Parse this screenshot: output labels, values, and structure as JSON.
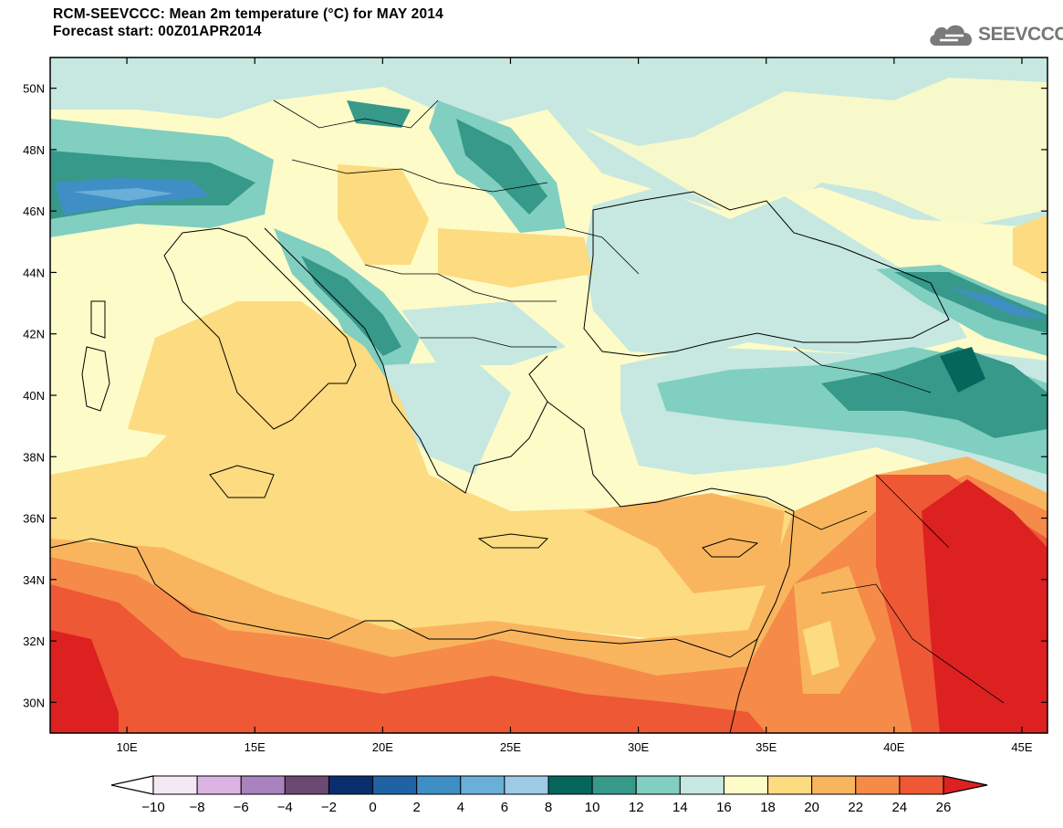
{
  "header": {
    "title_line1": "RCM-SEEVCCC: Mean 2m temperature (°C) for MAY 2014",
    "title_line2": "Forecast start: 00Z01APR2014"
  },
  "logo": {
    "text": "SEEVCCC",
    "icon": "cloud-icon",
    "color": "#777777"
  },
  "map": {
    "variable": "Mean 2m temperature",
    "unit": "°C",
    "lon_range": [
      7,
      46
    ],
    "lat_range": [
      29,
      51
    ],
    "lat_labels": [
      "30N",
      "32N",
      "34N",
      "36N",
      "38N",
      "40N",
      "42N",
      "44N",
      "46N",
      "48N",
      "50N"
    ],
    "lat_values": [
      30,
      32,
      34,
      36,
      38,
      40,
      42,
      44,
      46,
      48,
      50
    ],
    "lon_labels": [
      "10E",
      "15E",
      "20E",
      "25E",
      "30E",
      "35E",
      "40E",
      "45E"
    ],
    "lon_values": [
      10,
      15,
      20,
      25,
      30,
      35,
      40,
      45
    ]
  },
  "colorbar": {
    "labels": [
      "−10",
      "−8",
      "−6",
      "−4",
      "−2",
      "0",
      "2",
      "4",
      "6",
      "8",
      "10",
      "12",
      "14",
      "16",
      "18",
      "20",
      "22",
      "24",
      "26"
    ],
    "colors": [
      "#f5e8f5",
      "#dcb4e4",
      "#a883bd",
      "#6b4a72",
      "#0a2d6e",
      "#1f63a4",
      "#3f8fc6",
      "#6aafd8",
      "#9dcae4",
      "#05665c",
      "#36998a",
      "#80cfc0",
      "#c6e8e1",
      "#fdfbc8",
      "#fddb80",
      "#f9b55e",
      "#f68a48",
      "#ee5835",
      "#dd2121"
    ],
    "under_color": "#ffffff",
    "over_color": "#dd2121"
  }
}
